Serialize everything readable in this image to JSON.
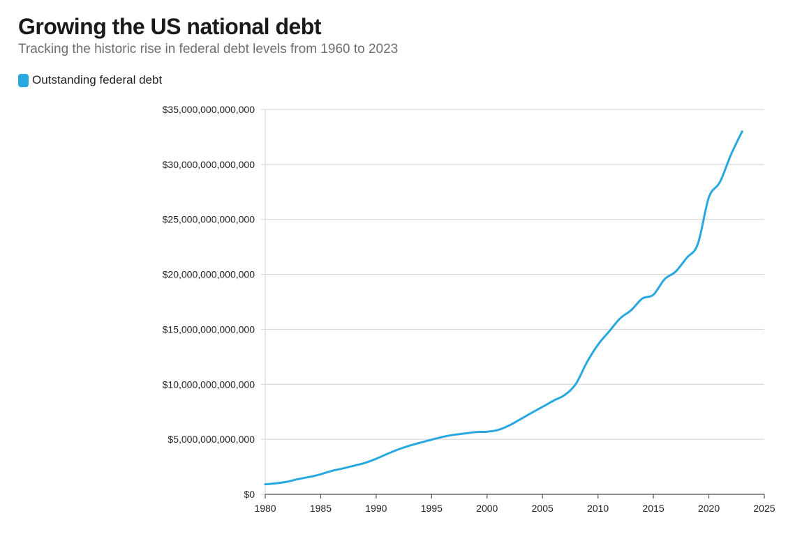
{
  "title": "Growing the US national debt",
  "subtitle": "Tracking the historic rise in federal debt levels from 1960 to 2023",
  "colors": {
    "series": "#29a8e0",
    "grid": "#d9d9d9",
    "axis": "#555555"
  },
  "chart_data": {
    "type": "line",
    "title": "Growing the US national debt",
    "subtitle": "Tracking the historic rise in federal debt levels from 1960 to 2023",
    "xlabel": "",
    "ylabel": "",
    "xlim": [
      1980,
      2025
    ],
    "ylim": [
      0,
      35000000000000
    ],
    "grid": true,
    "legend_position": "top-left",
    "x_ticks": [
      1980,
      1985,
      1990,
      1995,
      2000,
      2005,
      2010,
      2015,
      2020,
      2025
    ],
    "x_tick_labels": [
      "1980",
      "1985",
      "1990",
      "1995",
      "2000",
      "2005",
      "2010",
      "2015",
      "2020",
      "2025"
    ],
    "y_ticks": [
      0,
      5000000000000,
      10000000000000,
      15000000000000,
      20000000000000,
      25000000000000,
      30000000000000,
      35000000000000
    ],
    "y_tick_labels": [
      "$0",
      "$5,000,000,000,000",
      "$10,000,000,000,000",
      "$15,000,000,000,000",
      "$20,000,000,000,000",
      "$25,000,000,000,000",
      "$30,000,000,000,000",
      "$35,000,000,000,000"
    ],
    "series": [
      {
        "name": "Outstanding federal debt",
        "color": "#29a8e0",
        "x": [
          1980,
          1981,
          1982,
          1983,
          1984,
          1985,
          1986,
          1987,
          1988,
          1989,
          1990,
          1991,
          1992,
          1993,
          1994,
          1995,
          1996,
          1997,
          1998,
          1999,
          2000,
          2001,
          2002,
          2003,
          2004,
          2005,
          2006,
          2007,
          2008,
          2009,
          2010,
          2011,
          2012,
          2013,
          2014,
          2015,
          2016,
          2017,
          2018,
          2019,
          2020,
          2021,
          2022,
          2023
        ],
        "y": [
          910000000000,
          1000000000000,
          1150000000000,
          1390000000000,
          1580000000000,
          1820000000000,
          2130000000000,
          2350000000000,
          2600000000000,
          2860000000000,
          3230000000000,
          3670000000000,
          4080000000000,
          4420000000000,
          4700000000000,
          4970000000000,
          5220000000000,
          5410000000000,
          5530000000000,
          5660000000000,
          5690000000000,
          5850000000000,
          6260000000000,
          6820000000000,
          7400000000000,
          7950000000000,
          8520000000000,
          9030000000000,
          10030000000000,
          12000000000000,
          13600000000000,
          14800000000000,
          16000000000000,
          16750000000000,
          17800000000000,
          18150000000000,
          19550000000000,
          20250000000000,
          21500000000000,
          22750000000000,
          27000000000000,
          28400000000000,
          30900000000000,
          33000000000000
        ]
      }
    ]
  }
}
